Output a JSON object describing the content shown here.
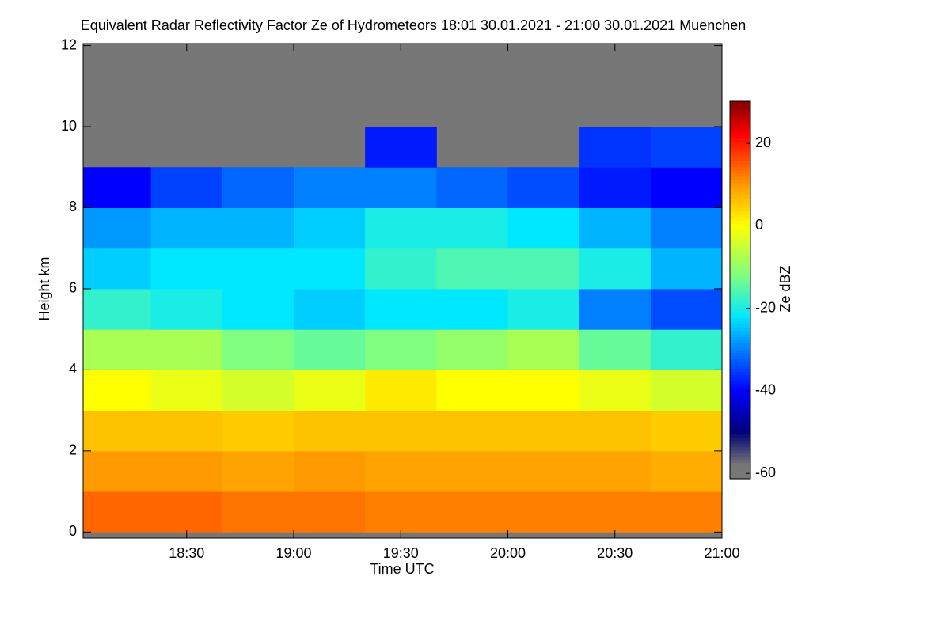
{
  "chart_data": {
    "type": "heatmap",
    "title": "Equivalent Radar Reflectivity Factor Ze of Hydrometeors   18:01 30.01.2021 - 21:00 30.01.2021 Muenchen",
    "x_label": "Time UTC",
    "y_label": "Height km",
    "colorbar_label": "Ze dBZ",
    "x": [
      1090,
      1110,
      1130,
      1150,
      1170,
      1190,
      1210,
      1230,
      1250
    ],
    "y": [
      0.5,
      1.5,
      2.5,
      3.5,
      4.5,
      5.5,
      6.5,
      7.5,
      8.5,
      9.5,
      10.5,
      11.5
    ],
    "z": [
      [
        14,
        14,
        13,
        13,
        12,
        12,
        12,
        12,
        12
      ],
      [
        10,
        10,
        9,
        10,
        9,
        9,
        9,
        9,
        8
      ],
      [
        6,
        6,
        5,
        6,
        6,
        6,
        6,
        6,
        5
      ],
      [
        0,
        -2,
        -4,
        -2,
        2,
        0,
        0,
        -2,
        -4
      ],
      [
        -8,
        -8,
        -12,
        -14,
        -12,
        -10,
        -8,
        -14,
        -18
      ],
      [
        -18,
        -20,
        -22,
        -24,
        -22,
        -22,
        -20,
        -30,
        -34
      ],
      [
        -24,
        -22,
        -22,
        -22,
        -18,
        -16,
        -16,
        -20,
        -26
      ],
      [
        -28,
        -26,
        -26,
        -24,
        -20,
        -20,
        -22,
        -26,
        -30
      ],
      [
        -40,
        -35,
        -32,
        -30,
        -30,
        -32,
        -34,
        -38,
        -40
      ],
      [
        null,
        null,
        null,
        null,
        -38,
        null,
        null,
        -36,
        -35
      ],
      [
        null,
        null,
        null,
        null,
        null,
        null,
        null,
        null,
        null
      ],
      [
        null,
        null,
        null,
        null,
        null,
        null,
        null,
        null,
        null
      ]
    ],
    "xlim": [
      1081,
      1260
    ],
    "xticks": [
      {
        "value": 1110,
        "label": "18:30"
      },
      {
        "value": 1140,
        "label": "19:00"
      },
      {
        "value": 1170,
        "label": "19:30"
      },
      {
        "value": 1200,
        "label": "20:00"
      },
      {
        "value": 1230,
        "label": "20:30"
      },
      {
        "value": 1260,
        "label": "21:00"
      }
    ],
    "ylim": [
      -0.15,
      12.05
    ],
    "yticks": [
      0,
      2,
      4,
      6,
      8,
      10,
      12
    ],
    "zlim": [
      -61.3,
      30.2
    ],
    "zticks": [
      -60,
      -40,
      -20,
      0,
      20
    ],
    "missing_color": "#777777",
    "colorscale": [
      [
        -61.3,
        "#777777"
      ],
      [
        -58,
        "#777777"
      ],
      [
        -50,
        "#00007a"
      ],
      [
        -40,
        "#0000ff"
      ],
      [
        -30,
        "#0080ff"
      ],
      [
        -22,
        "#00e8ff"
      ],
      [
        -12,
        "#80ff80"
      ],
      [
        0,
        "#ffff00"
      ],
      [
        10,
        "#ff9900"
      ],
      [
        22,
        "#ff0000"
      ],
      [
        30.2,
        "#800000"
      ]
    ]
  }
}
